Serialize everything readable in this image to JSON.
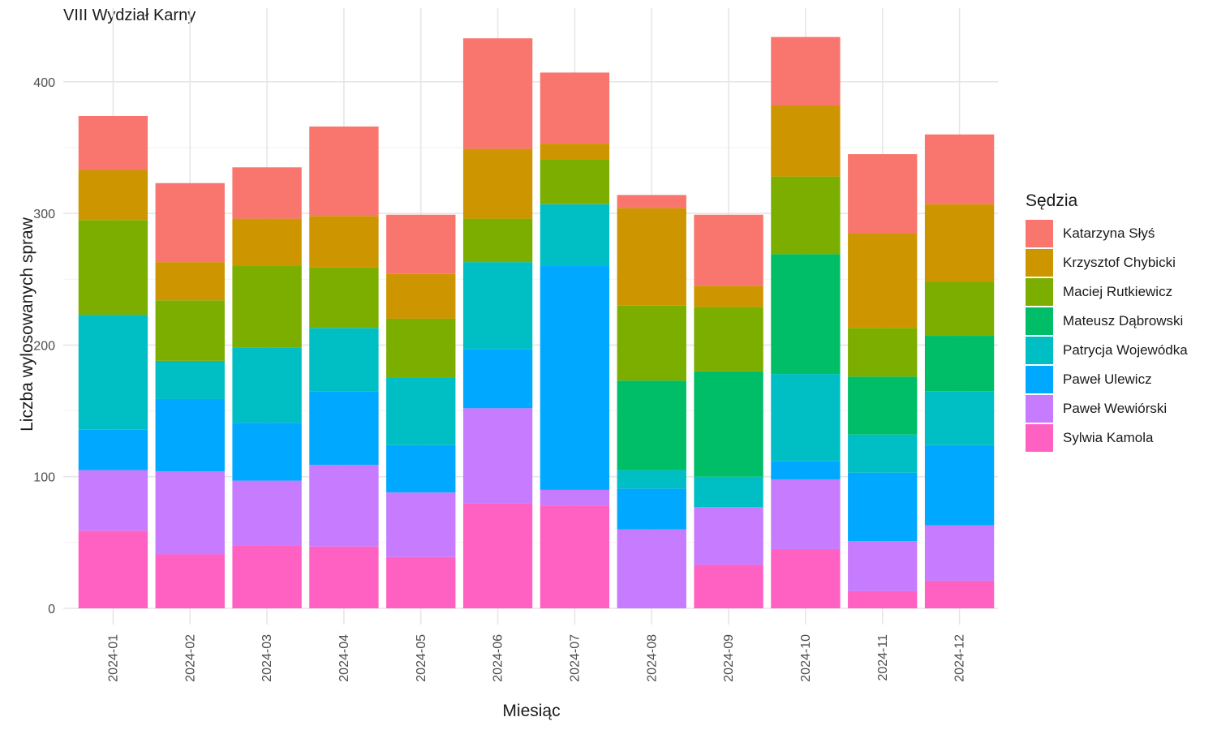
{
  "chart_data": {
    "type": "bar",
    "stacked": true,
    "title": "VIII Wydział Karny",
    "xlabel": "Miesiąc",
    "ylabel": "Liczba wylosowanych spraw",
    "ylim": [
      0,
      440
    ],
    "yticks": [
      0,
      100,
      200,
      300,
      400
    ],
    "grid": true,
    "legend_title": "Sędzia",
    "legend_position": "right",
    "categories": [
      "2024-01",
      "2024-02",
      "2024-03",
      "2024-04",
      "2024-05",
      "2024-06",
      "2024-07",
      "2024-08",
      "2024-09",
      "2024-10",
      "2024-11",
      "2024-12"
    ],
    "series": [
      {
        "name": "Sylwia Kamola",
        "color": "#FF61C3",
        "values": [
          59,
          41,
          48,
          47,
          39,
          80,
          78,
          0,
          33,
          45,
          13,
          21
        ]
      },
      {
        "name": "Paweł Wewiórski",
        "color": "#C77CFF",
        "values": [
          46,
          63,
          49,
          62,
          49,
          72,
          12,
          60,
          44,
          53,
          38,
          42
        ]
      },
      {
        "name": "Paweł Ulewicz",
        "color": "#00A9FF",
        "values": [
          31,
          55,
          44,
          56,
          36,
          45,
          170,
          31,
          0,
          14,
          52,
          61
        ]
      },
      {
        "name": "Patrycja Wojewódka",
        "color": "#00BFC4",
        "values": [
          87,
          29,
          57,
          48,
          51,
          66,
          47,
          14,
          23,
          66,
          29,
          41
        ]
      },
      {
        "name": "Mateusz Dąbrowski",
        "color": "#00BE67",
        "values": [
          0,
          0,
          0,
          0,
          0,
          0,
          0,
          68,
          80,
          91,
          44,
          42
        ]
      },
      {
        "name": "Maciej Rutkiewicz",
        "color": "#7CAE00",
        "values": [
          72,
          46,
          62,
          46,
          45,
          33,
          34,
          57,
          49,
          59,
          37,
          41
        ]
      },
      {
        "name": "Krzysztof Chybicki",
        "color": "#CD9600",
        "values": [
          38,
          29,
          36,
          39,
          34,
          53,
          12,
          74,
          16,
          54,
          72,
          59
        ]
      },
      {
        "name": "Katarzyna Słyś",
        "color": "#F8766D",
        "values": [
          41,
          60,
          39,
          68,
          45,
          84,
          54,
          10,
          54,
          52,
          60,
          53
        ]
      }
    ],
    "legend_order": [
      "Katarzyna Słyś",
      "Krzysztof Chybicki",
      "Maciej Rutkiewicz",
      "Mateusz Dąbrowski",
      "Patrycja Wojewódka",
      "Paweł Ulewicz",
      "Paweł Wewiórski",
      "Sylwia Kamola"
    ]
  }
}
